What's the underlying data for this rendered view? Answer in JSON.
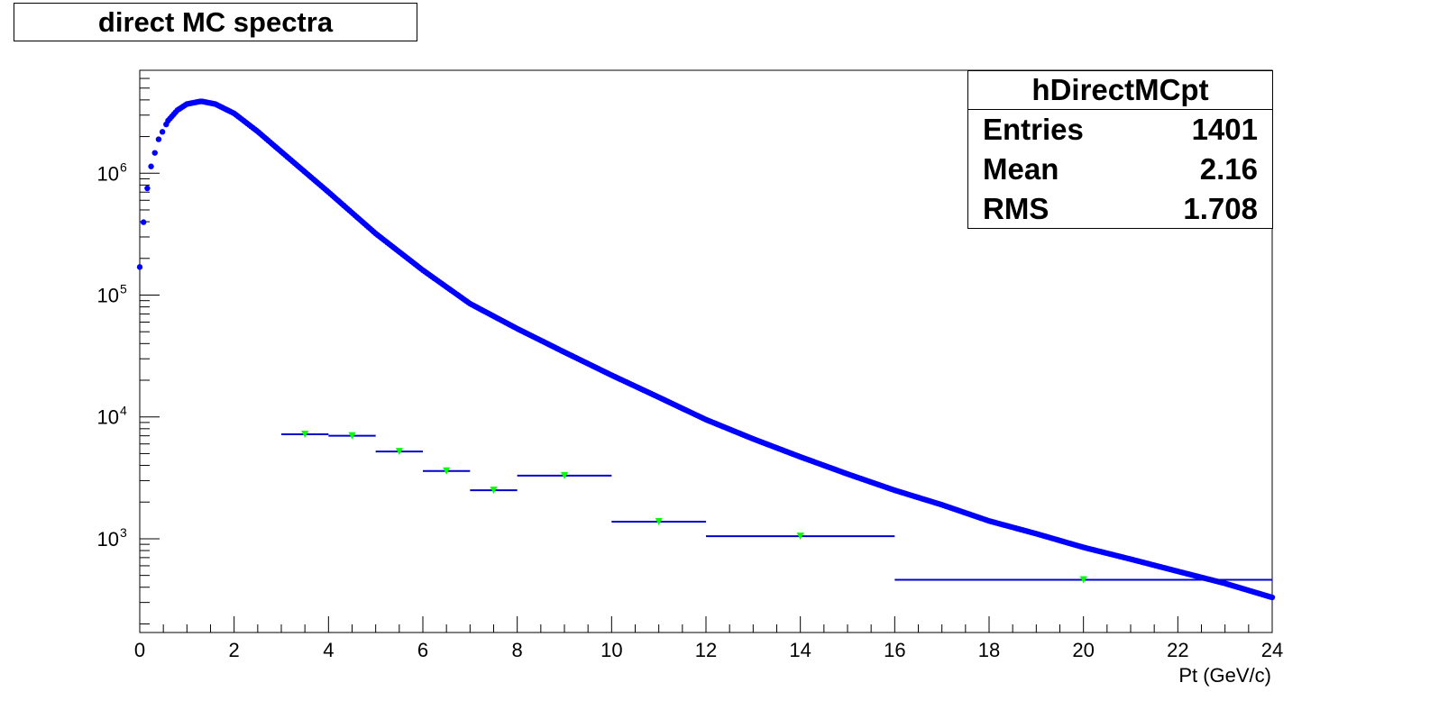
{
  "title": "direct MC spectra",
  "stats": {
    "name": "hDirectMCpt",
    "rows": [
      {
        "label": "Entries",
        "value": "1401"
      },
      {
        "label": "Mean",
        "value": "2.16"
      },
      {
        "label": "RMS",
        "value": "1.708"
      }
    ]
  },
  "colors": {
    "mc": "#0000ff",
    "data_line": "#0000cc",
    "data_marker": "#00ff00"
  },
  "chart_data": {
    "type": "scatter",
    "xlabel": "Pt (GeV/c)",
    "ylabel": "",
    "xlim": [
      0,
      24
    ],
    "ylim": [
      170,
      7000000
    ],
    "yscale": "log",
    "x_ticks": [
      0,
      2,
      4,
      6,
      8,
      10,
      12,
      14,
      16,
      18,
      20,
      22,
      24
    ],
    "y_ticks": [
      {
        "value": 1000,
        "base": "10",
        "exp": "3"
      },
      {
        "value": 10000,
        "base": "10",
        "exp": "4"
      },
      {
        "value": 100000,
        "base": "10",
        "exp": "5"
      },
      {
        "value": 1000000,
        "base": "10",
        "exp": "6"
      }
    ],
    "grid": false,
    "series": [
      {
        "marker": "circle",
        "curve_points": [
          [
            0.0,
            170000
          ],
          [
            0.1,
            490000
          ],
          [
            0.2,
            1000000
          ],
          [
            0.4,
            1900000
          ],
          [
            0.6,
            2700000
          ],
          [
            0.8,
            3300000
          ],
          [
            1.0,
            3700000
          ],
          [
            1.3,
            3900000
          ],
          [
            1.6,
            3700000
          ],
          [
            2.0,
            3100000
          ],
          [
            2.5,
            2200000
          ],
          [
            3.0,
            1500000
          ],
          [
            4.0,
            700000
          ],
          [
            5.0,
            320000
          ],
          [
            6.0,
            160000
          ],
          [
            7.0,
            85000
          ],
          [
            8.0,
            53000
          ],
          [
            9.0,
            34000
          ],
          [
            10.0,
            22000
          ],
          [
            11.0,
            14500
          ],
          [
            12.0,
            9500
          ],
          [
            13.0,
            6600
          ],
          [
            14.0,
            4700
          ],
          [
            15.0,
            3400
          ],
          [
            16.0,
            2500
          ],
          [
            17.0,
            1900
          ],
          [
            18.0,
            1400
          ],
          [
            19.0,
            1100
          ],
          [
            20.0,
            850
          ],
          [
            21.0,
            680
          ],
          [
            22.0,
            540
          ],
          [
            23.0,
            430
          ],
          [
            24.0,
            330
          ]
        ]
      },
      {
        "marker": "triangle-down",
        "points": [
          {
            "x": 3.5,
            "xlo": 3,
            "xhi": 4,
            "y": 7200
          },
          {
            "x": 4.5,
            "xlo": 4,
            "xhi": 5,
            "y": 7000
          },
          {
            "x": 5.5,
            "xlo": 5,
            "xhi": 6,
            "y": 5200
          },
          {
            "x": 6.5,
            "xlo": 6,
            "xhi": 7,
            "y": 3600
          },
          {
            "x": 7.5,
            "xlo": 7,
            "xhi": 8,
            "y": 2500
          },
          {
            "x": 9,
            "xlo": 8,
            "xhi": 10,
            "y": 3300
          },
          {
            "x": 11,
            "xlo": 10,
            "xhi": 12,
            "y": 1380
          },
          {
            "x": 14,
            "xlo": 12,
            "xhi": 16,
            "y": 1050
          },
          {
            "x": 20,
            "xlo": 16,
            "xhi": 24,
            "y": 460
          }
        ]
      }
    ]
  }
}
